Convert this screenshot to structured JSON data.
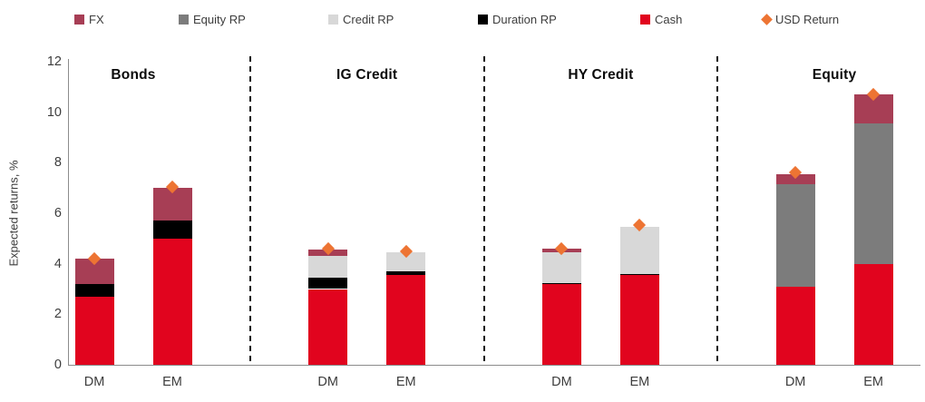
{
  "chart_data": {
    "type": "bar",
    "stacked": true,
    "title": "",
    "ylabel": "Expected returns, %",
    "ylim": [
      0,
      12
    ],
    "yticks": [
      0,
      2,
      4,
      6,
      8,
      10,
      12
    ],
    "grid": false,
    "legend_position": "top",
    "series_order": [
      "cash",
      "duration_rp",
      "credit_rp",
      "equity_rp",
      "fx"
    ],
    "series_colors": {
      "cash": "#E1041E",
      "duration_rp": "#000000",
      "credit_rp": "#D8D8D8",
      "equity_rp": "#7C7C7C",
      "fx": "#A73E55"
    },
    "marker": {
      "name": "usd_return",
      "label": "USD Return",
      "color": "#ED7433",
      "shape": "diamond"
    },
    "legend": [
      {
        "label": "FX",
        "series": "fx",
        "shape": "square"
      },
      {
        "label": "Equity RP",
        "series": "equity_rp",
        "shape": "square"
      },
      {
        "label": "Credit RP",
        "series": "credit_rp",
        "shape": "square"
      },
      {
        "label": "Duration RP",
        "series": "duration_rp",
        "shape": "square"
      },
      {
        "label": "Cash",
        "series": "cash",
        "shape": "square"
      },
      {
        "label": "USD Return",
        "series": "usd_return",
        "shape": "diamond"
      }
    ],
    "groups": [
      {
        "label": "Bonds",
        "bars": [
          {
            "label": "DM",
            "segments": {
              "cash": 2.7,
              "duration_rp": 0.5,
              "credit_rp": 0,
              "equity_rp": 0,
              "fx": 1.0
            },
            "total": 4.2,
            "usd_return": 4.2
          },
          {
            "label": "EM",
            "segments": {
              "cash": 5.0,
              "duration_rp": 0.7,
              "credit_rp": 0,
              "equity_rp": 0,
              "fx": 1.3
            },
            "total": 7.0,
            "usd_return": 7.05
          }
        ]
      },
      {
        "label": "IG Credit",
        "bars": [
          {
            "label": "DM",
            "segments": {
              "cash": 3.0,
              "duration_rp": 0.45,
              "credit_rp": 0.85,
              "equity_rp": 0,
              "fx": 0.25
            },
            "total": 4.55,
            "usd_return": 4.6
          },
          {
            "label": "EM",
            "segments": {
              "cash": 3.55,
              "duration_rp": 0.15,
              "credit_rp": 0.75,
              "equity_rp": 0,
              "fx": 0
            },
            "total": 4.45,
            "usd_return": 4.5
          }
        ]
      },
      {
        "label": "HY Credit",
        "bars": [
          {
            "label": "DM",
            "segments": {
              "cash": 3.2,
              "duration_rp": 0.05,
              "credit_rp": 1.2,
              "equity_rp": 0,
              "fx": 0.15
            },
            "total": 4.6,
            "usd_return": 4.6
          },
          {
            "label": "EM",
            "segments": {
              "cash": 3.55,
              "duration_rp": 0.05,
              "credit_rp": 1.85,
              "equity_rp": 0,
              "fx": 0
            },
            "total": 5.45,
            "usd_return": 5.55
          }
        ]
      },
      {
        "label": "Equity",
        "bars": [
          {
            "label": "DM",
            "segments": {
              "cash": 3.1,
              "duration_rp": 0,
              "credit_rp": 0,
              "equity_rp": 4.05,
              "fx": 0.4
            },
            "total": 7.55,
            "usd_return": 7.6
          },
          {
            "label": "EM",
            "segments": {
              "cash": 4.0,
              "duration_rp": 0,
              "credit_rp": 0,
              "equity_rp": 5.55,
              "fx": 1.15
            },
            "total": 10.7,
            "usd_return": 10.7
          }
        ]
      }
    ]
  }
}
